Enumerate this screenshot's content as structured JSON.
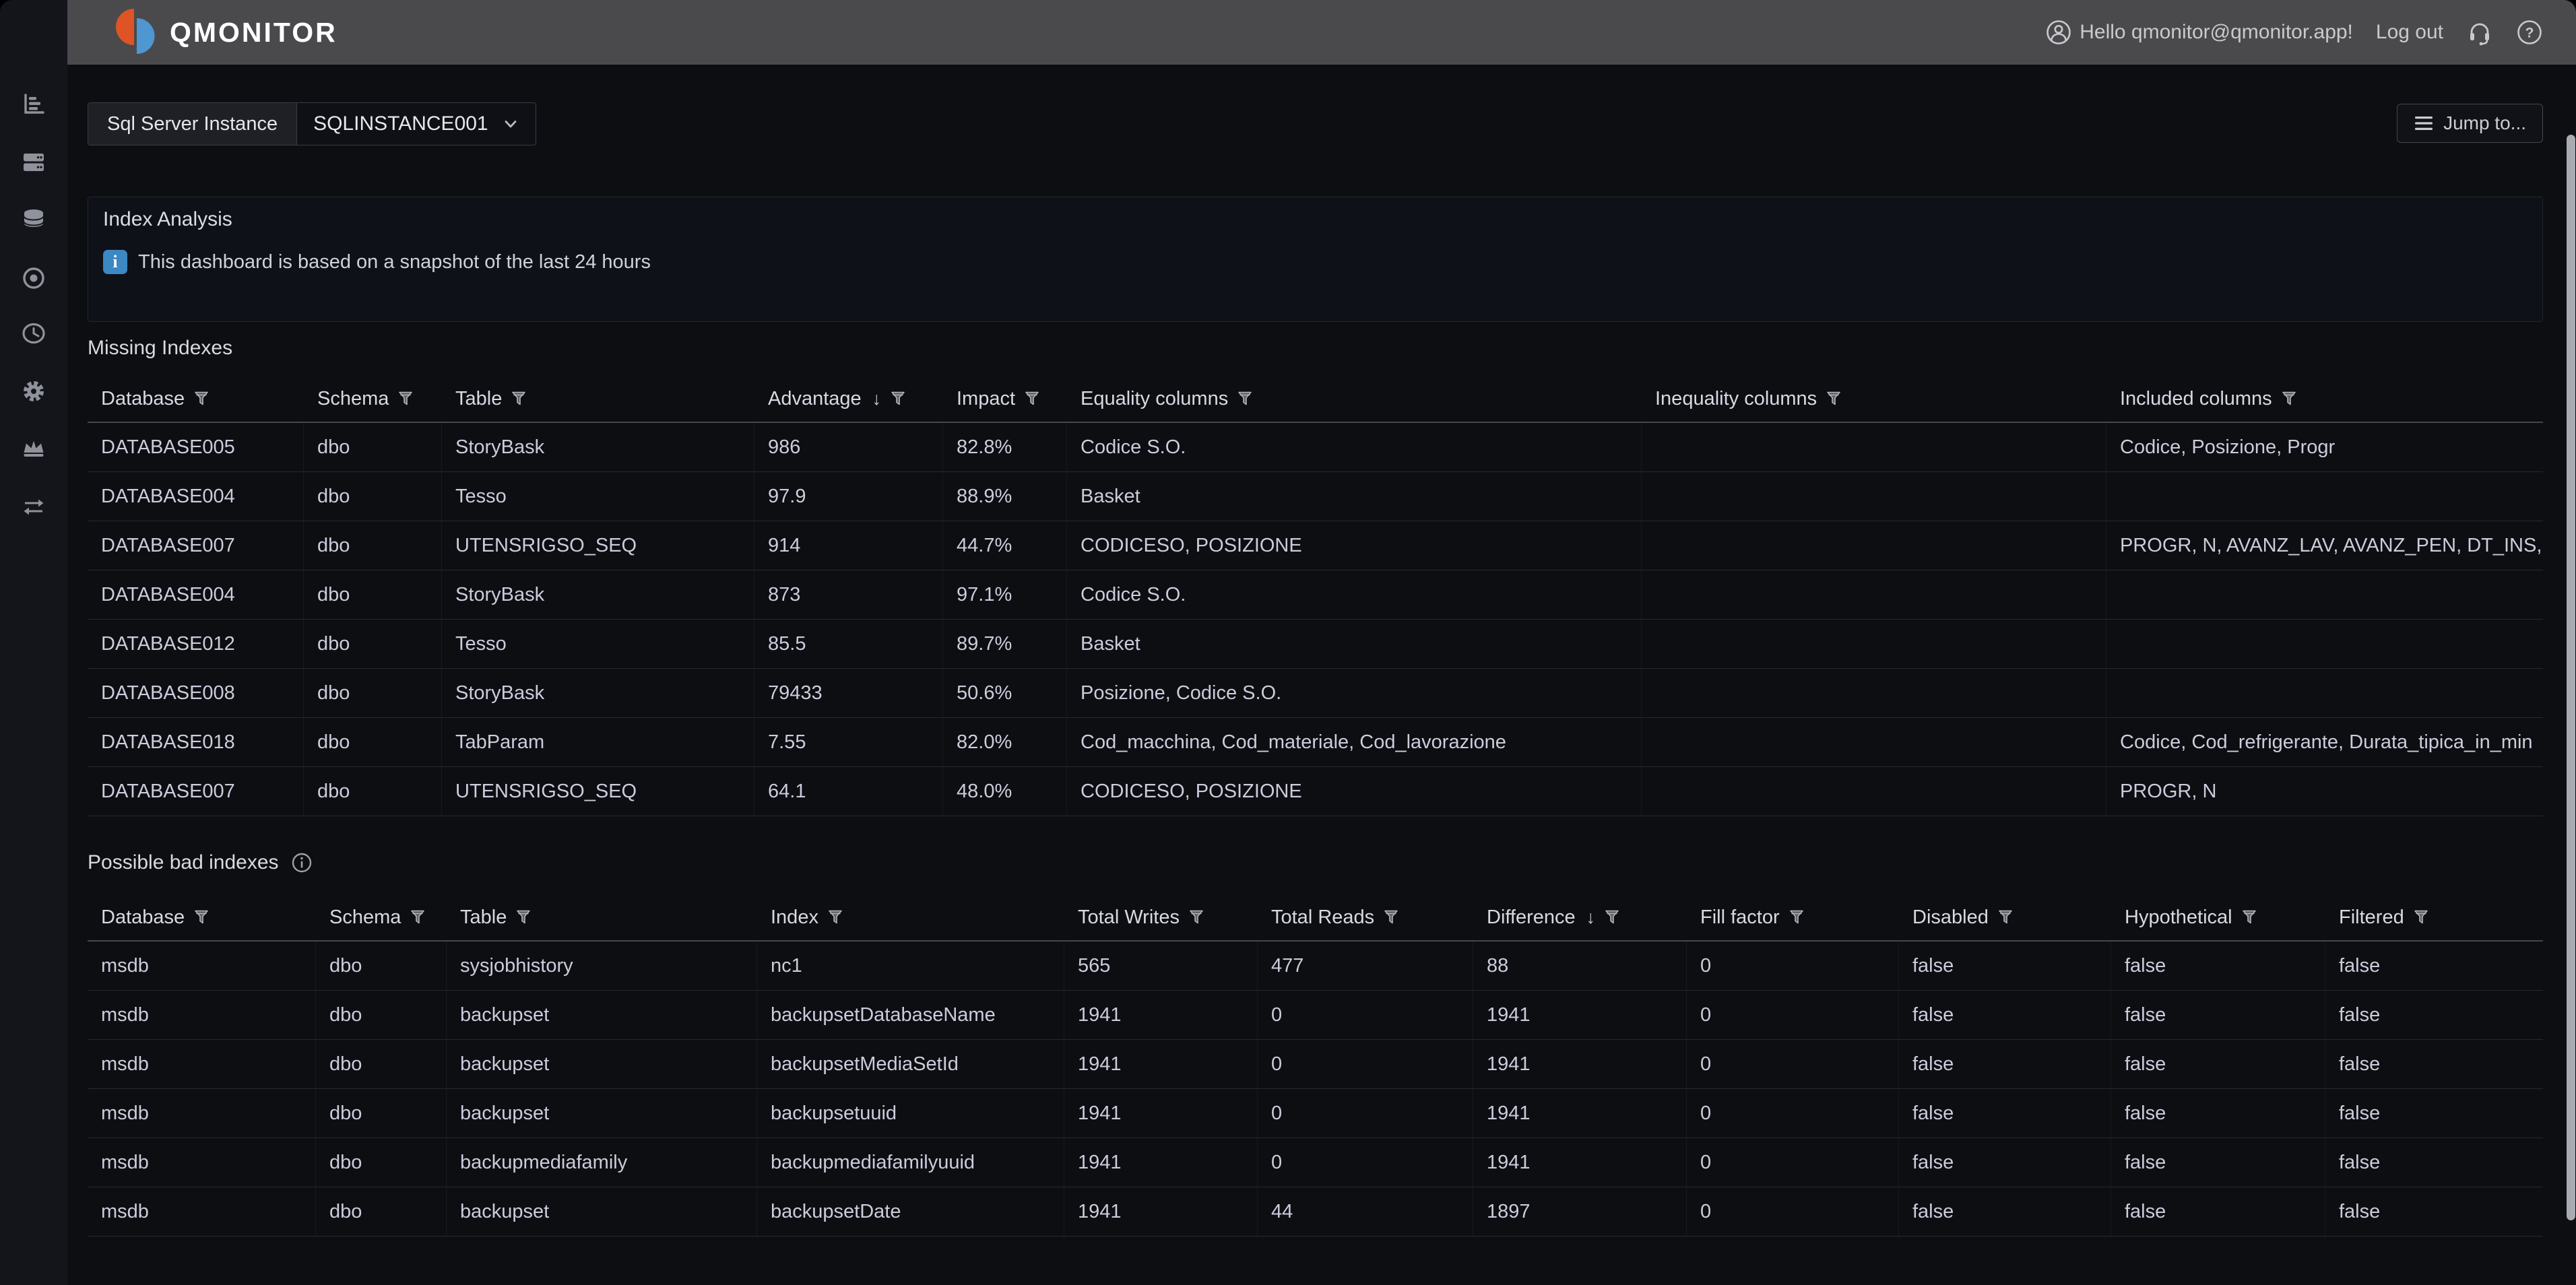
{
  "navbar": {
    "brand": "QMONITOR",
    "greeting": "Hello qmonitor@qmonitor.app!",
    "logout_label": "Log out",
    "icons": [
      "user-icon",
      "headset-icon",
      "help-icon"
    ]
  },
  "sidebar": {
    "items": [
      {
        "icon": "bar-chart"
      },
      {
        "icon": "servers"
      },
      {
        "icon": "database"
      },
      {
        "icon": "record"
      },
      {
        "icon": "clock"
      },
      {
        "icon": "gear"
      },
      {
        "icon": "crown"
      },
      {
        "icon": "swap-arrows"
      }
    ]
  },
  "toolbar": {
    "variable_label": "Sql Server Instance",
    "variable_value": "SQLINSTANCE001",
    "jump_to_label": "Jump to..."
  },
  "info_panel": {
    "title": "Index Analysis",
    "message": "This dashboard is based on a snapshot of the last 24 hours",
    "info_badge": "i"
  },
  "missing_indexes": {
    "title": "Missing Indexes",
    "columns": [
      {
        "label": "Database",
        "filter": true
      },
      {
        "label": "Schema",
        "filter": true
      },
      {
        "label": "Table",
        "filter": true
      },
      {
        "label": "Advantage",
        "filter": true,
        "sorted": "desc"
      },
      {
        "label": "Impact",
        "filter": true
      },
      {
        "label": "Equality columns",
        "filter": true
      },
      {
        "label": "Inequality columns",
        "filter": true
      },
      {
        "label": "Included columns",
        "filter": true
      }
    ],
    "rows": [
      [
        "DATABASE005",
        "dbo",
        "StoryBask",
        "986",
        "82.8%",
        "Codice S.O.",
        "",
        "Codice, Posizione, Progr"
      ],
      [
        "DATABASE004",
        "dbo",
        "Tesso",
        "97.9",
        "88.9%",
        "Basket",
        "",
        ""
      ],
      [
        "DATABASE007",
        "dbo",
        "UTENSRIGSO_SEQ",
        "914",
        "44.7%",
        "CODICESO, POSIZIONE",
        "",
        "PROGR, N, AVANZ_LAV, AVANZ_PEN, DT_INS,"
      ],
      [
        "DATABASE004",
        "dbo",
        "StoryBask",
        "873",
        "97.1%",
        "Codice S.O.",
        "",
        ""
      ],
      [
        "DATABASE012",
        "dbo",
        "Tesso",
        "85.5",
        "89.7%",
        "Basket",
        "",
        ""
      ],
      [
        "DATABASE008",
        "dbo",
        "StoryBask",
        "79433",
        "50.6%",
        "Posizione, Codice S.O.",
        "",
        ""
      ],
      [
        "DATABASE018",
        "dbo",
        "TabParam",
        "7.55",
        "82.0%",
        "Cod_macchina, Cod_materiale, Cod_lavorazione",
        "",
        "Codice, Cod_refrigerante, Durata_tipica_in_min"
      ],
      [
        "DATABASE007",
        "dbo",
        "UTENSRIGSO_SEQ",
        "64.1",
        "48.0%",
        "CODICESO, POSIZIONE",
        "",
        "PROGR, N"
      ]
    ]
  },
  "possible_bad_indexes": {
    "title": "Possible bad indexes",
    "columns": [
      {
        "label": "Database",
        "filter": true
      },
      {
        "label": "Schema",
        "filter": true
      },
      {
        "label": "Table",
        "filter": true
      },
      {
        "label": "Index",
        "filter": true
      },
      {
        "label": "Total Writes",
        "filter": true
      },
      {
        "label": "Total Reads",
        "filter": true
      },
      {
        "label": "Difference",
        "filter": true,
        "sorted": "desc"
      },
      {
        "label": "Fill factor",
        "filter": true
      },
      {
        "label": "Disabled",
        "filter": true
      },
      {
        "label": "Hypothetical",
        "filter": true
      },
      {
        "label": "Filtered",
        "filter": true
      }
    ],
    "rows": [
      [
        "msdb",
        "dbo",
        "sysjobhistory",
        "nc1",
        "565",
        "477",
        "88",
        "0",
        "false",
        "false",
        "false"
      ],
      [
        "msdb",
        "dbo",
        "backupset",
        "backupsetDatabaseName",
        "1941",
        "0",
        "1941",
        "0",
        "false",
        "false",
        "false"
      ],
      [
        "msdb",
        "dbo",
        "backupset",
        "backupsetMediaSetId",
        "1941",
        "0",
        "1941",
        "0",
        "false",
        "false",
        "false"
      ],
      [
        "msdb",
        "dbo",
        "backupset",
        "backupsetuuid",
        "1941",
        "0",
        "1941",
        "0",
        "false",
        "false",
        "false"
      ],
      [
        "msdb",
        "dbo",
        "backupmediafamily",
        "backupmediafamilyuuid",
        "1941",
        "0",
        "1941",
        "0",
        "false",
        "false",
        "false"
      ],
      [
        "msdb",
        "dbo",
        "backupset",
        "backupsetDate",
        "1941",
        "44",
        "1897",
        "0",
        "false",
        "false",
        "false"
      ]
    ]
  },
  "colors": {
    "navbar_bg": "#4a4a4c",
    "page_bg": "#0c0e12",
    "sidebar_bg": "#14151b",
    "panel_border": "#23252c",
    "text": "#ccccdc",
    "logo_orange": "#dd5427",
    "logo_blue": "#4e97d1",
    "info_blue": "#3b88c3"
  }
}
